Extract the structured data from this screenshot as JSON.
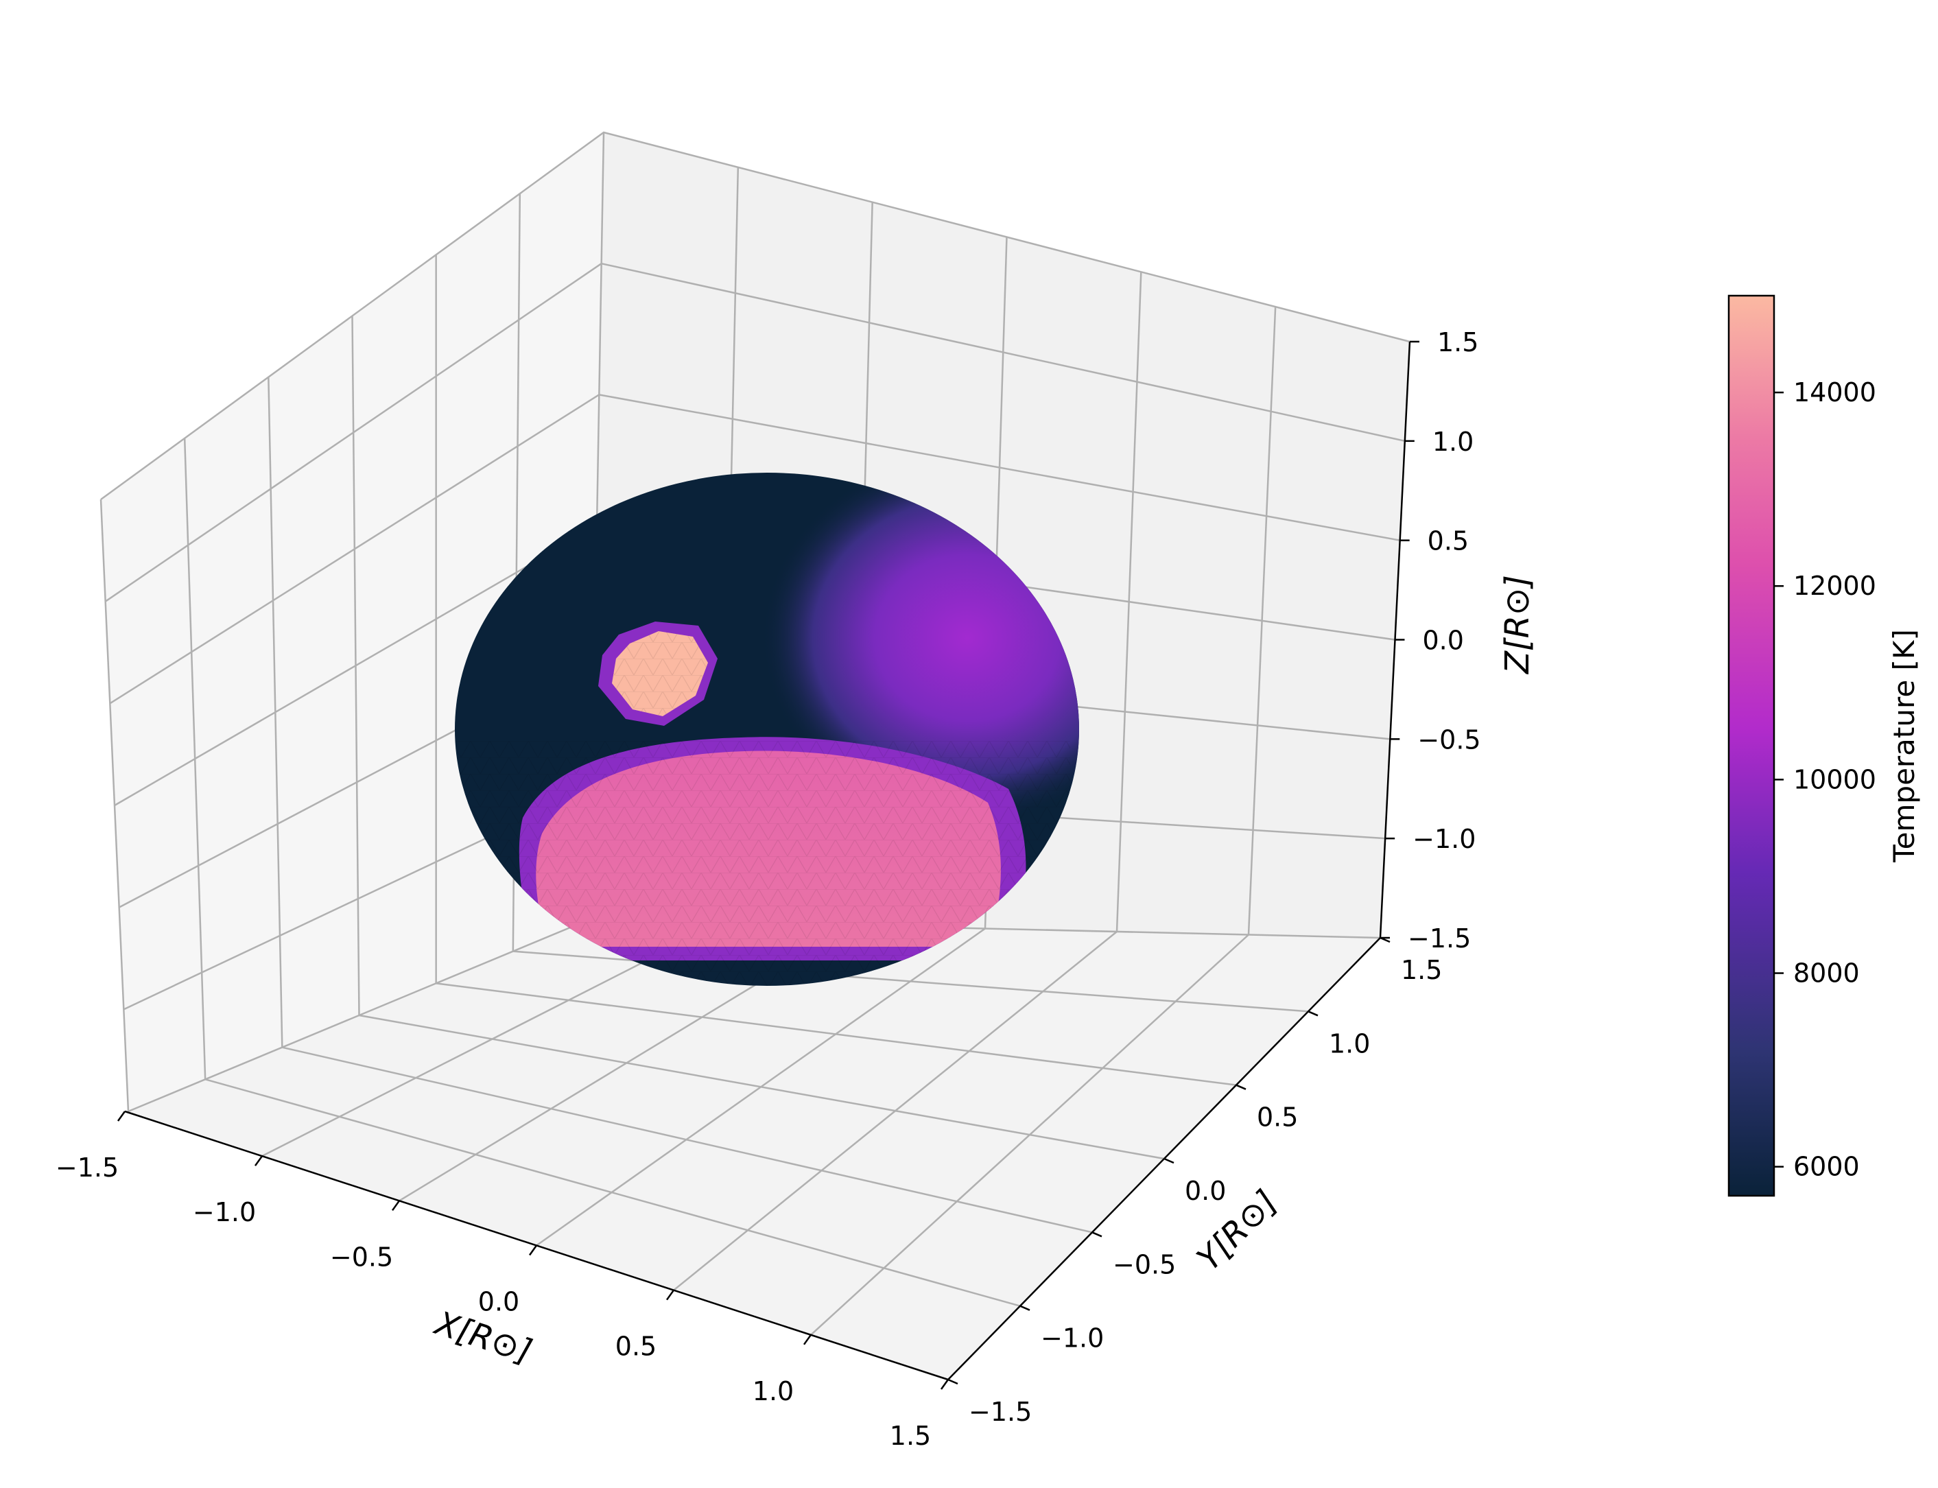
{
  "chart_data": {
    "type": "3d-surface",
    "surface": "sphere",
    "radius": 1.0,
    "regions": [
      {
        "name": "background photosphere",
        "temperature": 5700
      },
      {
        "name": "small hot spot",
        "temperature": 15000
      },
      {
        "name": "large lower spot",
        "temperature": 12800
      },
      {
        "name": "right warm region",
        "temperature": 10000
      }
    ],
    "axes": {
      "x": {
        "label": "X[R⊙]",
        "range": [
          -1.5,
          1.5
        ],
        "ticks": [
          "−1.5",
          "−1.0",
          "−0.5",
          "0.0",
          "0.5",
          "1.0",
          "1.5"
        ]
      },
      "y": {
        "label": "Y[R⊙]",
        "range": [
          -1.5,
          1.5
        ],
        "ticks": [
          "−1.5",
          "−1.0",
          "−0.5",
          "0.0",
          "0.5",
          "1.0",
          "1.5"
        ]
      },
      "z": {
        "label": "Z[R⊙]",
        "range": [
          -1.5,
          1.5
        ],
        "ticks": [
          "−1.5",
          "−1.0",
          "−0.5",
          "0.0",
          "0.5",
          "1.0",
          "1.5"
        ]
      }
    },
    "grid": true,
    "colorbar": {
      "label": "Temperature [K]",
      "range": [
        5700,
        15000
      ],
      "ticks": [
        "6000",
        "8000",
        "10000",
        "12000",
        "14000"
      ],
      "tick_values": [
        6000,
        8000,
        10000,
        12000,
        14000
      ],
      "colors": [
        "#0a2239",
        "#2e3473",
        "#6629b5",
        "#b22bcb",
        "#dd4fad",
        "#ec79a5",
        "#fbb9a2"
      ]
    }
  }
}
